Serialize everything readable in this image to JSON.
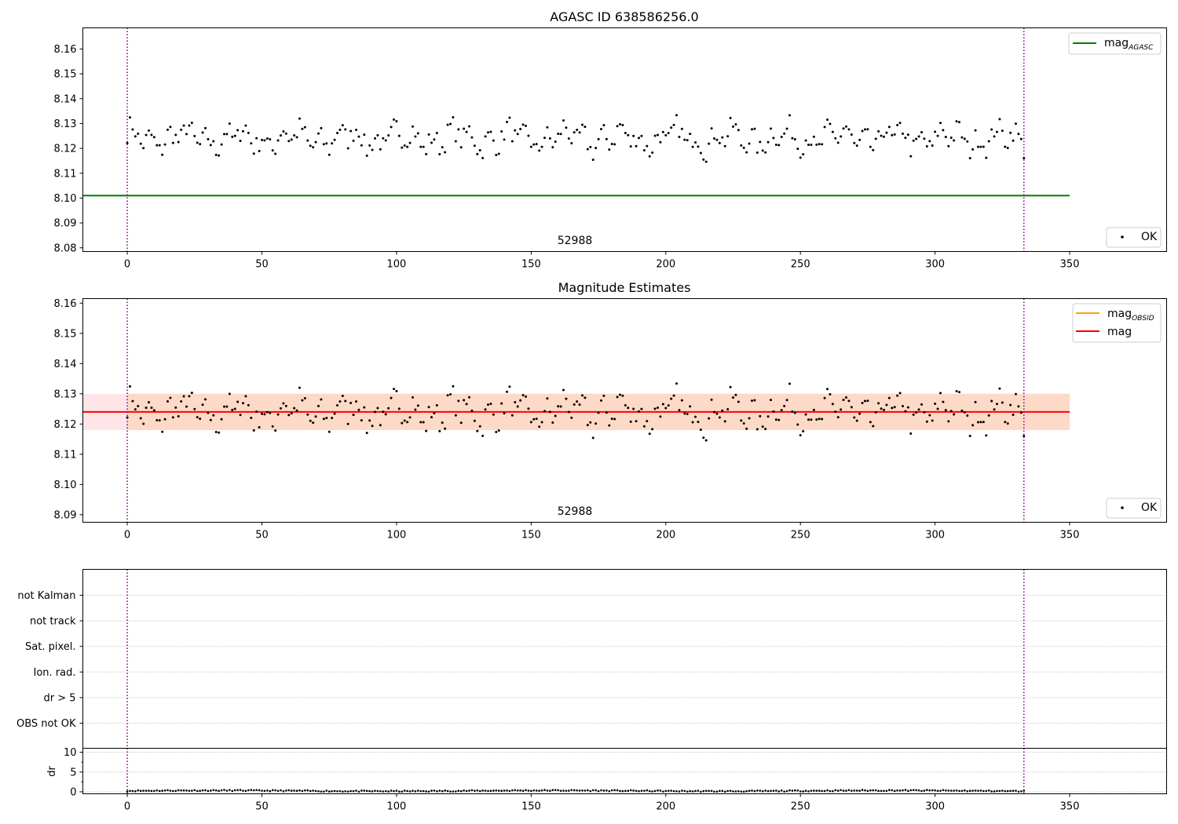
{
  "chart_data": [
    {
      "type": "scatter",
      "title": "AGASC ID 638586256.0",
      "annotation": "52988",
      "xlim": [
        -16.5,
        386
      ],
      "ylim": [
        8.0785,
        8.1685
      ],
      "xticks": [
        0,
        50,
        100,
        150,
        200,
        250,
        300,
        350
      ],
      "yticks": [
        8.08,
        8.09,
        8.1,
        8.11,
        8.12,
        8.13,
        8.14,
        8.15,
        8.16
      ],
      "vlines": [
        0,
        333
      ],
      "hline": {
        "y": 8.101,
        "x": [
          -16.5,
          350
        ],
        "color": "#008000"
      },
      "legend_upper": [
        {
          "label": "mag",
          "sub": "AGASC",
          "color": "#008000"
        }
      ],
      "legend_lower": [
        {
          "label": "OK",
          "marker": "dot"
        }
      ],
      "series": [
        {
          "x_start": 0,
          "x_end": 333,
          "y_base": 8.124,
          "amplitude": 0.007
        }
      ]
    },
    {
      "type": "scatter",
      "title": "Magnitude Estimates",
      "annotation": "52988",
      "xlim": [
        -16.5,
        386
      ],
      "ylim": [
        8.0875,
        8.1615
      ],
      "xticks": [
        0,
        50,
        100,
        150,
        200,
        250,
        300,
        350
      ],
      "yticks": [
        8.09,
        8.1,
        8.11,
        8.12,
        8.13,
        8.14,
        8.15,
        8.16
      ],
      "vlines": [
        0,
        333
      ],
      "band_outer": {
        "y": [
          8.118,
          8.13
        ],
        "x": [
          -16.5,
          350
        ],
        "color": "#ffe4e8"
      },
      "band_inner": {
        "y": [
          8.118,
          8.13
        ],
        "x": [
          0,
          350
        ],
        "color": "#fdd9c8"
      },
      "hline": {
        "y": 8.124,
        "x": [
          -16.5,
          350
        ],
        "color": "#ff0000"
      },
      "legend_upper": [
        {
          "label": "mag",
          "sub": "OBSID",
          "color": "#ffa500"
        },
        {
          "label": "mag",
          "sub": "",
          "color": "#ff0000"
        }
      ],
      "legend_lower": [
        {
          "label": "OK",
          "marker": "dot"
        }
      ],
      "series": [
        {
          "x_start": 0,
          "x_end": 333,
          "y_base": 8.124,
          "amplitude": 0.007
        }
      ]
    },
    {
      "type": "table",
      "flags": [
        "not Kalman",
        "not track",
        "Sat. pixel.",
        "Ion. rad.",
        "dr > 5",
        "OBS not OK"
      ],
      "xlim": [
        -16.5,
        386
      ],
      "vlines": [
        0,
        333
      ]
    },
    {
      "type": "scatter",
      "ylabel": "dr",
      "xlim": [
        -16.5,
        386
      ],
      "ylim": [
        -0.5,
        11
      ],
      "yticks": [
        0,
        5,
        10
      ],
      "xticks": [
        0,
        50,
        100,
        150,
        200,
        250,
        300,
        350
      ],
      "vlines": [
        0,
        333
      ],
      "series": [
        {
          "x_start": 0,
          "x_end": 333,
          "y_base": 0.25,
          "amplitude": 0.15
        }
      ]
    }
  ],
  "colors": {
    "vline": "#800080",
    "points": "#000000",
    "grid": "#b0b0b0"
  }
}
